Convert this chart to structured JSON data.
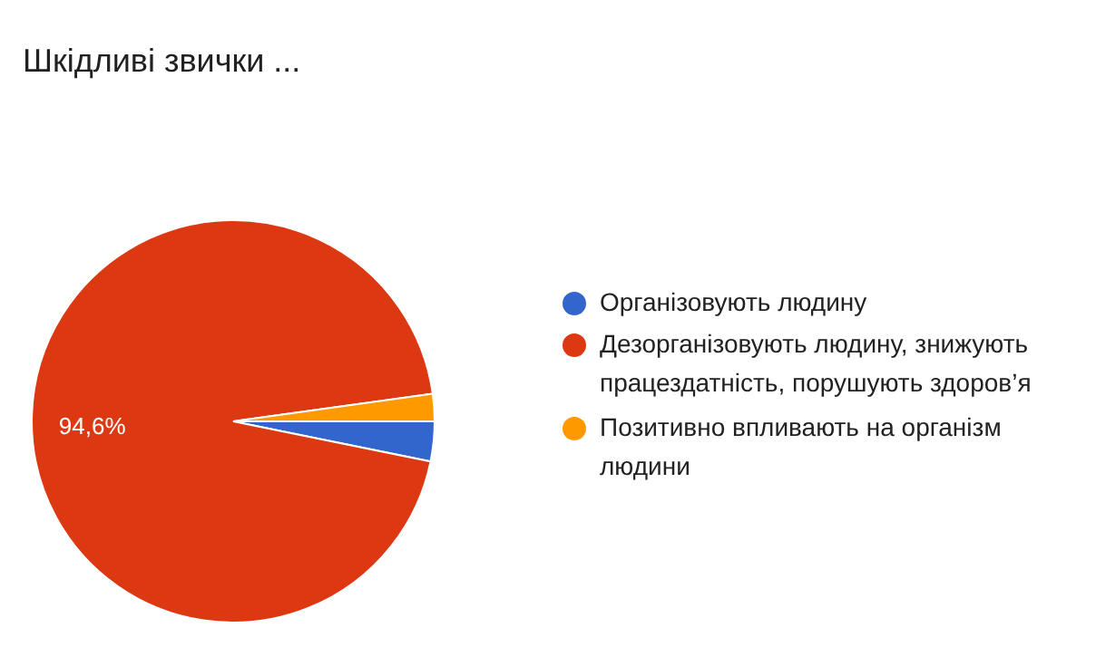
{
  "chart_data": {
    "type": "pie",
    "title": "Шкідливі звички ...",
    "categories": [
      "Організовують людину",
      "Дезорганізовують людину, знижують працездатність, порушують здоров’я",
      "Позитивно впливають на організм людини"
    ],
    "values": [
      3.2,
      94.6,
      2.2
    ],
    "colors": [
      "#3366cc",
      "#dc3912",
      "#ff9900"
    ],
    "value_labels": [
      null,
      "94,6%",
      null
    ],
    "legend": "right"
  }
}
